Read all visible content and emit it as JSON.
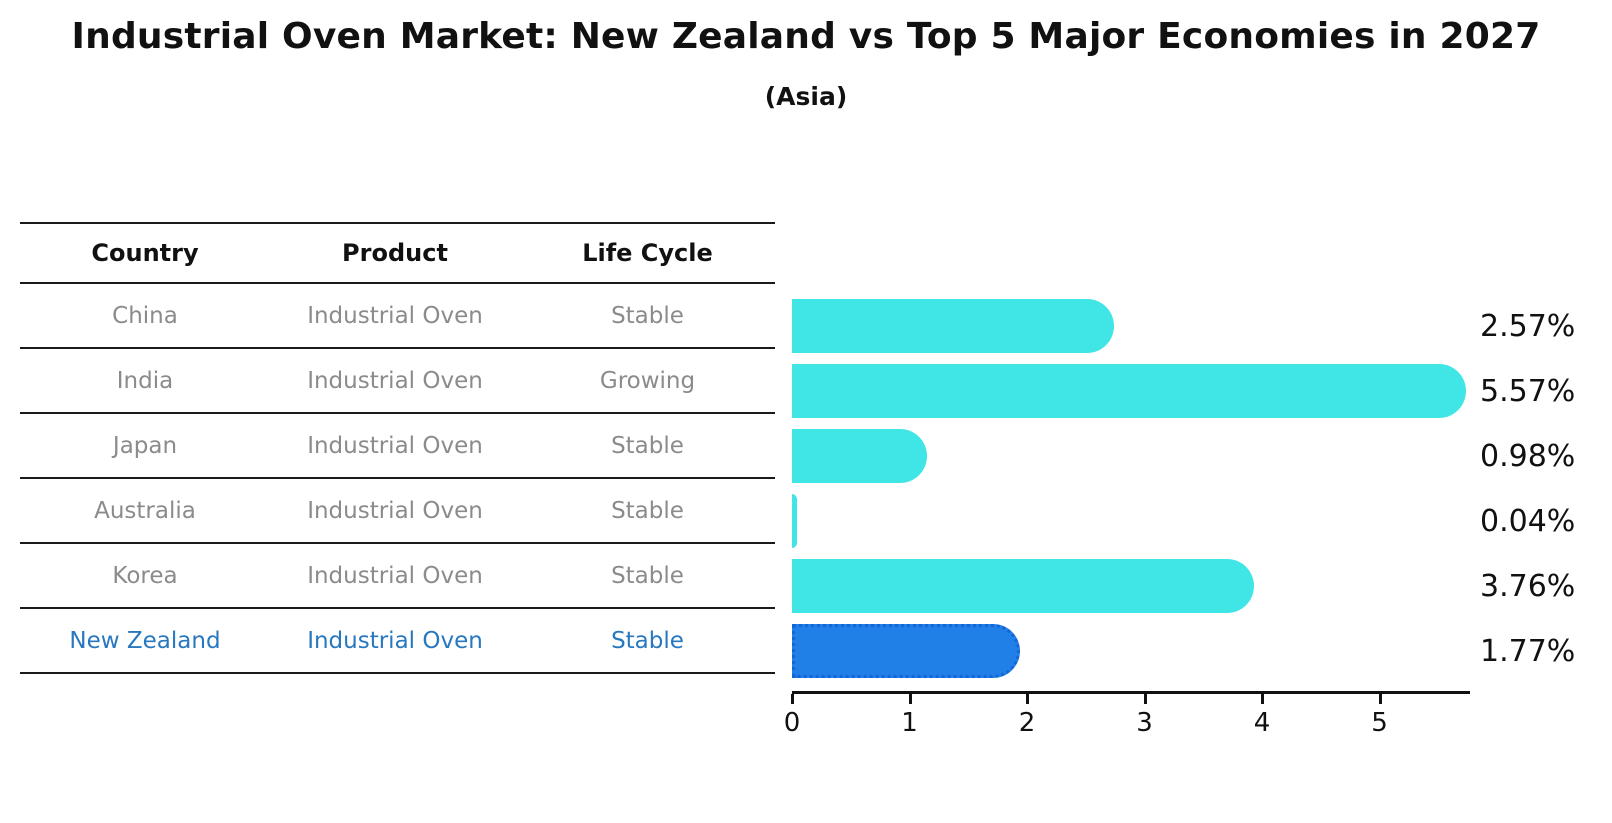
{
  "title": "Industrial Oven Market: New Zealand vs Top 5 Major Economies in 2027",
  "subtitle": "(Asia)",
  "table": {
    "headers": [
      "Country",
      "Product",
      "Life Cycle"
    ],
    "rows": [
      {
        "country": "China",
        "product": "Industrial Oven",
        "life_cycle": "Stable",
        "highlight": false
      },
      {
        "country": "India",
        "product": "Industrial Oven",
        "life_cycle": "Growing",
        "highlight": false
      },
      {
        "country": "Japan",
        "product": "Industrial Oven",
        "life_cycle": "Stable",
        "highlight": false
      },
      {
        "country": "Australia",
        "product": "Industrial Oven",
        "life_cycle": "Stable",
        "highlight": false
      },
      {
        "country": "Korea",
        "product": "Industrial Oven",
        "life_cycle": "Stable",
        "highlight": false
      },
      {
        "country": "New Zealand",
        "product": "Industrial Oven",
        "life_cycle": "Stable",
        "highlight": true
      }
    ]
  },
  "chart_data": {
    "type": "bar",
    "orientation": "horizontal",
    "categories": [
      "China",
      "India",
      "Japan",
      "Australia",
      "Korea",
      "New Zealand"
    ],
    "values": [
      2.57,
      5.57,
      0.98,
      0.04,
      3.76,
      1.77
    ],
    "value_labels": [
      "2.57%",
      "5.57%",
      "0.98%",
      "0.04%",
      "3.76%",
      "1.77%"
    ],
    "x_ticks": [
      0,
      1,
      2,
      3,
      4,
      5
    ],
    "xlim": [
      0,
      5.77
    ],
    "xlabel": "",
    "ylabel": "",
    "grid": false,
    "legend": false,
    "bar_color": "#40E5E5",
    "highlight_index": 5,
    "highlight_color": "#2080E8",
    "highlight_border_color": "#1565D6"
  },
  "colors": {
    "text": "#111111",
    "muted_text": "#8b8b8b",
    "highlight_text": "#2878C0",
    "rule_line": "#1a1a1a"
  }
}
